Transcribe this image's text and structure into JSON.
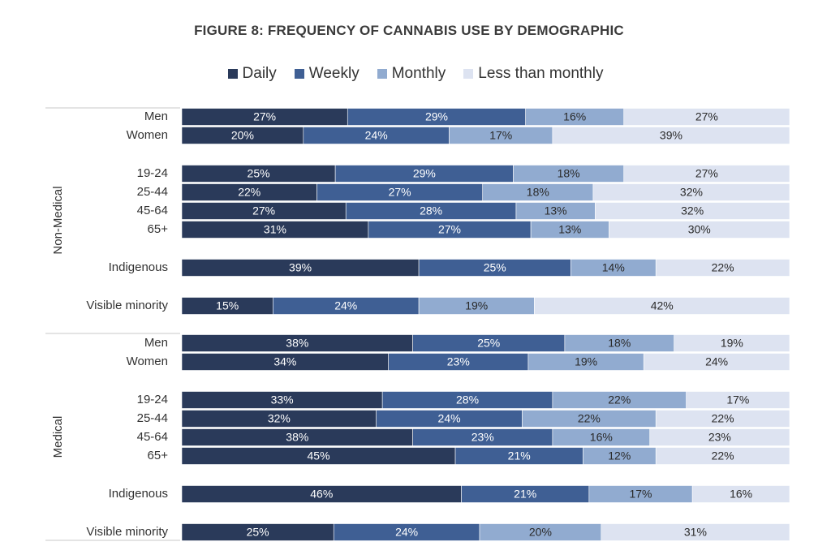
{
  "chart_data": {
    "type": "bar",
    "orientation": "horizontal-stacked-100",
    "title": "FIGURE 8: FREQUENCY OF CANNABIS USE BY DEMOGRAPHIC",
    "legend_position": "top",
    "colors": [
      "#2a3a5a",
      "#3f5f94",
      "#91abd0",
      "#dde3f1"
    ],
    "series": [
      {
        "name": "Daily"
      },
      {
        "name": "Weekly"
      },
      {
        "name": "Monthly"
      },
      {
        "name": "Less than monthly"
      }
    ],
    "groups": [
      {
        "name": "Non-Medical",
        "rows": [
          {
            "label": "Men",
            "values": [
              27,
              29,
              16,
              27
            ]
          },
          {
            "label": "Women",
            "values": [
              20,
              24,
              17,
              39
            ]
          },
          {
            "label": "19-24",
            "values": [
              25,
              29,
              18,
              27
            ]
          },
          {
            "label": "25-44",
            "values": [
              22,
              27,
              18,
              32
            ]
          },
          {
            "label": "45-64",
            "values": [
              27,
              28,
              13,
              32
            ]
          },
          {
            "label": "65+",
            "values": [
              31,
              27,
              13,
              30
            ]
          },
          {
            "label": "Indigenous",
            "values": [
              39,
              25,
              14,
              22
            ]
          },
          {
            "label": "Visible minority",
            "values": [
              15,
              24,
              19,
              42
            ]
          }
        ]
      },
      {
        "name": "Medical",
        "rows": [
          {
            "label": "Men",
            "values": [
              38,
              25,
              18,
              19
            ]
          },
          {
            "label": "Women",
            "values": [
              34,
              23,
              19,
              24
            ]
          },
          {
            "label": "19-24",
            "values": [
              33,
              28,
              22,
              17
            ]
          },
          {
            "label": "25-44",
            "values": [
              32,
              24,
              22,
              22
            ]
          },
          {
            "label": "45-64",
            "values": [
              38,
              23,
              16,
              23
            ]
          },
          {
            "label": "65+",
            "values": [
              45,
              21,
              12,
              22
            ]
          },
          {
            "label": "Indigenous",
            "values": [
              46,
              21,
              17,
              16
            ]
          },
          {
            "label": "Visible minority",
            "values": [
              25,
              24,
              20,
              31
            ]
          }
        ]
      }
    ],
    "value_suffix": "%"
  }
}
